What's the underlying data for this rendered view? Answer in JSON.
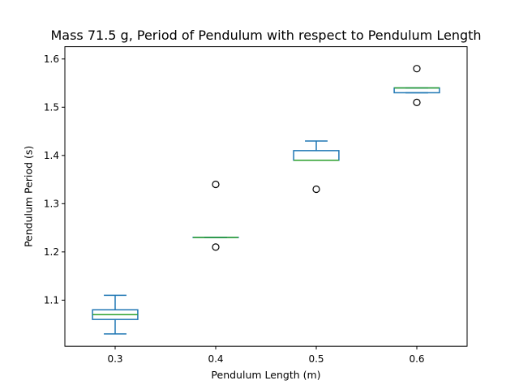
{
  "chart_data": {
    "type": "box",
    "title": "Mass 71.5 g, Period of Pendulum with respect to Pendulum Length",
    "xlabel": "Pendulum Length (m)",
    "ylabel": "Pendulum Period (s)",
    "categories": [
      "0.3",
      "0.4",
      "0.5",
      "0.6"
    ],
    "ylim": [
      1.0045,
      1.6255
    ],
    "yticks": [
      "1.1",
      "1.2",
      "1.3",
      "1.4",
      "1.5",
      "1.6"
    ],
    "grid": false,
    "boxes": [
      {
        "category": "0.3",
        "whisker_low": 1.03,
        "q1": 1.06,
        "median": 1.07,
        "q3": 1.08,
        "whisker_high": 1.11,
        "outliers": []
      },
      {
        "category": "0.4",
        "whisker_low": 1.23,
        "q1": 1.23,
        "median": 1.23,
        "q3": 1.23,
        "whisker_high": 1.23,
        "outliers": [
          1.21,
          1.34
        ]
      },
      {
        "category": "0.5",
        "whisker_low": 1.39,
        "q1": 1.39,
        "median": 1.39,
        "q3": 1.41,
        "whisker_high": 1.43,
        "outliers": [
          1.33
        ]
      },
      {
        "category": "0.6",
        "whisker_low": 1.53,
        "q1": 1.53,
        "median": 1.54,
        "q3": 1.54,
        "whisker_high": 1.54,
        "outliers": [
          1.51,
          1.58
        ]
      }
    ],
    "colors": {
      "box": "#1f77b4",
      "median": "#2ca02c",
      "outlier": "#000000"
    }
  }
}
